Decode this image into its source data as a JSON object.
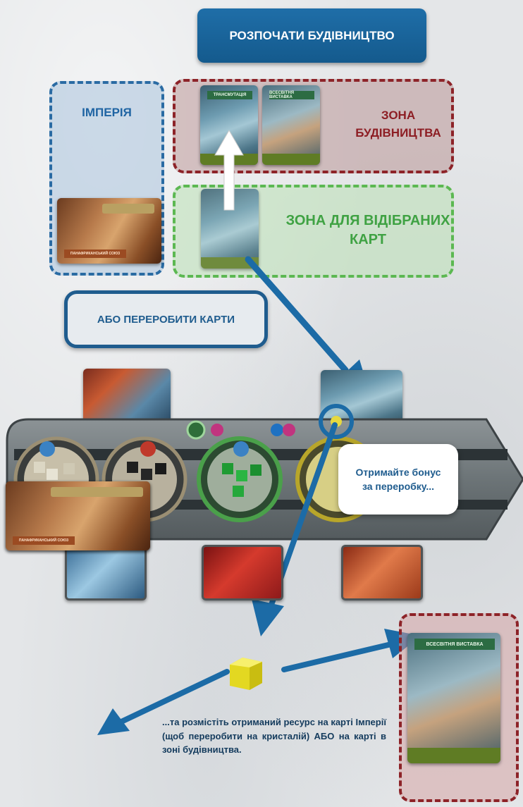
{
  "start_button": "РОЗПОЧАТИ БУДІВНИЦТВО",
  "zones": {
    "empire": "ІМПЕРІЯ",
    "construction": "ЗОНА БУДІВНИЦТВА",
    "drafted": "ЗОНА ДЛЯ ВІДІБРАНИХ КАРТ"
  },
  "recycle_button": "АБО ПЕРЕРОБИТИ КАРТИ",
  "bonus_bubble": "Отримайте бонус за переробку...",
  "footer_text": "...та розмістіть отриманий ресурс на карті Імперії (щоб переробити на кристалій) АБО на карті в зоні будівництва.",
  "cards": {
    "transmutation": "ТРАНСМУТАЦІЯ",
    "world_fair": "ВСЕСВІТНЯ ВИСТАВКА",
    "world_fair_large": "ВСЕСВІТНЯ ВИСТАВКА",
    "panafrican": "ПАНАФРИКАНСЬКИЙ СОЮЗ",
    "panafrican_small": "ПАНАФРИКАНСЬКИЙ СОЮЗ"
  },
  "colors": {
    "blue": "#1b5d92",
    "blue_zone": "#2d6ea4",
    "red_zone": "#8b1f24",
    "green_zone": "#53b24b",
    "crystal": "#f0e62d"
  }
}
